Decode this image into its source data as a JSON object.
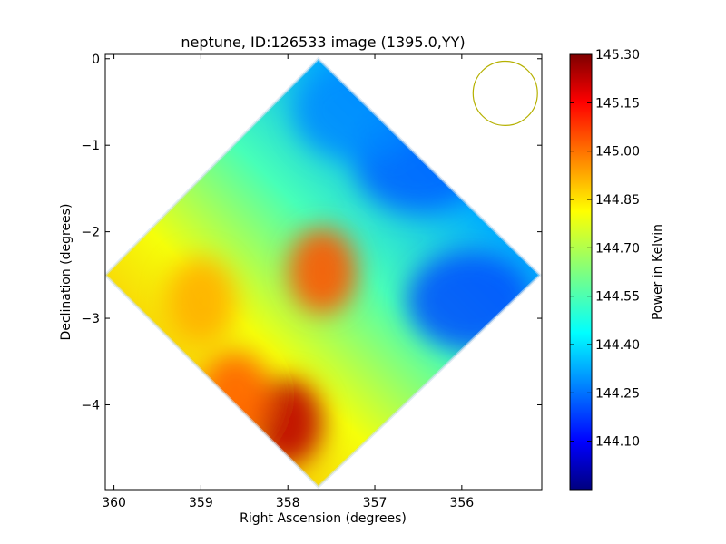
{
  "chart_data": {
    "type": "heatmap",
    "title": "neptune, ID:126533 image (1395.0,YY)",
    "xlabel": "Right Ascension (degrees)",
    "ylabel": "Declination (degrees)",
    "xlim": [
      360.1,
      355.08
    ],
    "ylim": [
      -4.98,
      0.05
    ],
    "x_ticks": [
      360,
      359,
      358,
      357,
      356
    ],
    "x_tick_labels": [
      "360",
      "359",
      "358",
      "357",
      "356"
    ],
    "y_ticks": [
      0,
      -1,
      -2,
      -3,
      -4
    ],
    "y_tick_labels": [
      "0",
      "−1",
      "−2",
      "−3",
      "−4"
    ],
    "map_extent": {
      "top": {
        "ra": 357.65,
        "dec": 0.0
      },
      "right": {
        "ra": 355.1,
        "dec": -2.5
      },
      "bottom": {
        "ra": 357.65,
        "dec": -4.95
      },
      "left": {
        "ra": 360.1,
        "dec": -2.5
      }
    },
    "beam_circle": {
      "ra": 355.5,
      "dec": -0.4,
      "radius_deg": 0.37,
      "color": "#b5b000"
    },
    "hotspots": [
      {
        "ra": 358.0,
        "dec": -4.2,
        "value": 145.22
      },
      {
        "ra": 357.6,
        "dec": -2.45,
        "value": 145.02
      },
      {
        "ra": 359.0,
        "dec": -2.8,
        "value": 144.9
      },
      {
        "ra": 358.6,
        "dec": -3.9,
        "value": 145.0
      }
    ],
    "coldspots": [
      {
        "ra": 356.5,
        "dec": -1.2,
        "value": 144.25
      },
      {
        "ra": 355.9,
        "dec": -2.8,
        "value": 144.22
      },
      {
        "ra": 357.2,
        "dec": -0.6,
        "value": 144.3
      }
    ],
    "colorbar": {
      "label": "Power in Kelvin",
      "min": 143.95,
      "max": 145.3,
      "ticks": [
        145.3,
        145.15,
        145.0,
        144.85,
        144.7,
        144.55,
        144.4,
        144.25,
        144.1
      ],
      "tick_labels": [
        "145.30",
        "145.15",
        "145.00",
        "144.85",
        "144.70",
        "144.55",
        "144.40",
        "144.25",
        "144.10"
      ],
      "colormap": "jet"
    }
  }
}
